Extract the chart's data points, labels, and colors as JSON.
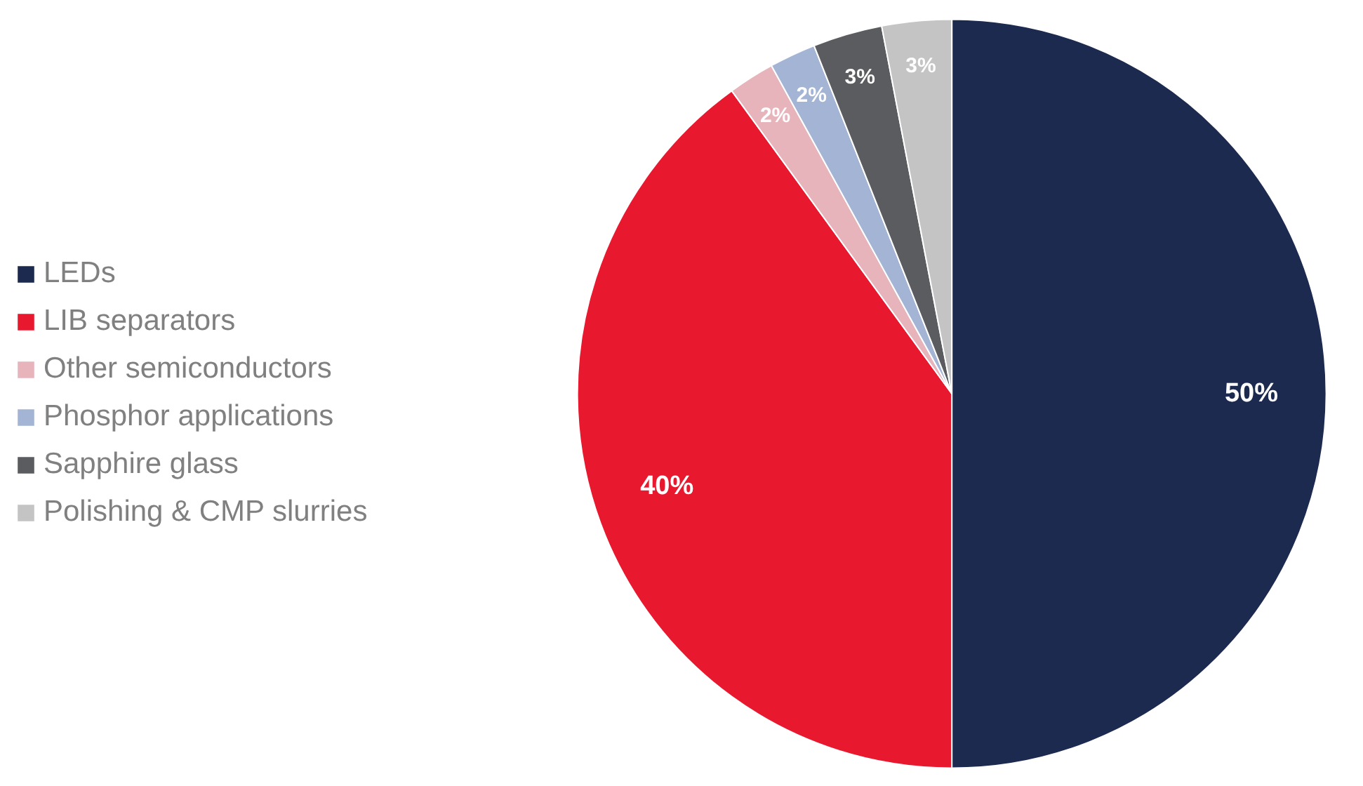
{
  "chart_data": {
    "type": "pie",
    "categories": [
      "LEDs",
      "LIB separators",
      "Other semiconductors",
      "Phosphor applications",
      "Sapphire glass",
      "Polishing & CMP slurries"
    ],
    "values": [
      50,
      40,
      2,
      2,
      3,
      3
    ],
    "colors": [
      "#1b2a4e",
      "#e8192f",
      "#e8b4bc",
      "#a3b4d4",
      "#5a5c5f",
      "#c4c4c4"
    ],
    "value_labels": [
      "50%",
      "40%",
      "2%",
      "2%",
      "3%",
      "3%"
    ],
    "legend": "left"
  }
}
